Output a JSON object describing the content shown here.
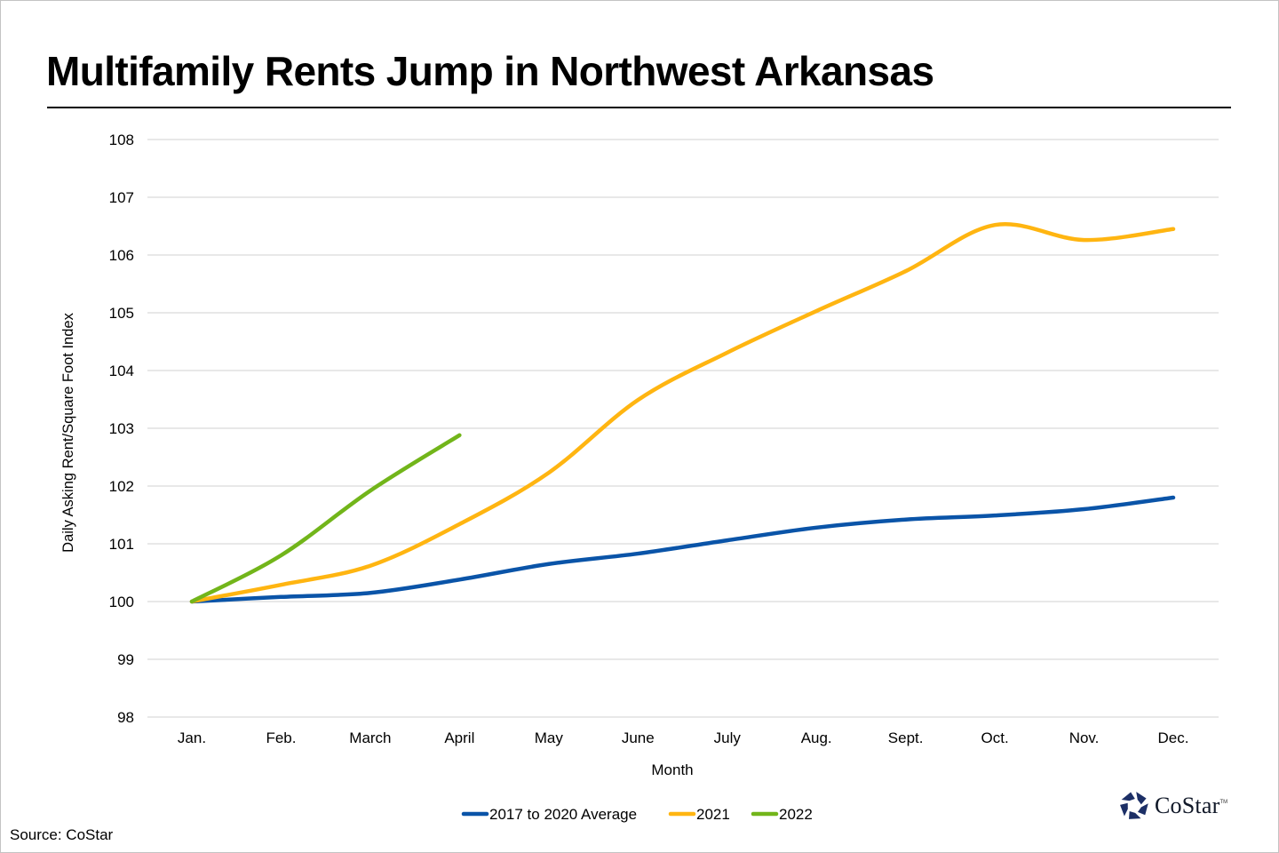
{
  "title": "Multifamily Rents Jump in Northwest Arkansas",
  "source": "Source: CoStar",
  "logo": {
    "name": "CoStar",
    "tm": "TM"
  },
  "colors": {
    "series_2017_2020": "#0A54A8",
    "series_2021": "#FFB511",
    "series_2022": "#72B51A",
    "grid": "#d9d9d9"
  },
  "chart_data": {
    "type": "line",
    "title": "Multifamily Rents Jump in Northwest Arkansas",
    "xlabel": "Month",
    "ylabel": "Daily Asking Rent/Square Foot Index",
    "ylim": [
      98,
      108
    ],
    "yticks": [
      98,
      99,
      100,
      101,
      102,
      103,
      104,
      105,
      106,
      107,
      108
    ],
    "grid": true,
    "legend_position": "bottom",
    "categories": [
      "Jan.",
      "Feb.",
      "March",
      "April",
      "May",
      "June",
      "July",
      "Aug.",
      "Sept.",
      "Oct.",
      "Nov.",
      "Dec."
    ],
    "series": [
      {
        "name": "2017 to 2020 Average",
        "color": "#0A54A8",
        "values": [
          100.0,
          100.08,
          100.15,
          100.38,
          100.65,
          100.83,
          101.06,
          101.28,
          101.42,
          101.49,
          101.6,
          101.8
        ]
      },
      {
        "name": "2021",
        "color": "#FFB511",
        "values": [
          100.0,
          100.29,
          100.62,
          101.34,
          102.23,
          103.49,
          104.31,
          105.03,
          105.72,
          106.52,
          106.26,
          106.45
        ]
      },
      {
        "name": "2022",
        "color": "#72B51A",
        "values": [
          100.0,
          100.8,
          101.92,
          102.88,
          null,
          null,
          null,
          null,
          null,
          null,
          null,
          null
        ]
      }
    ],
    "source": "CoStar"
  }
}
